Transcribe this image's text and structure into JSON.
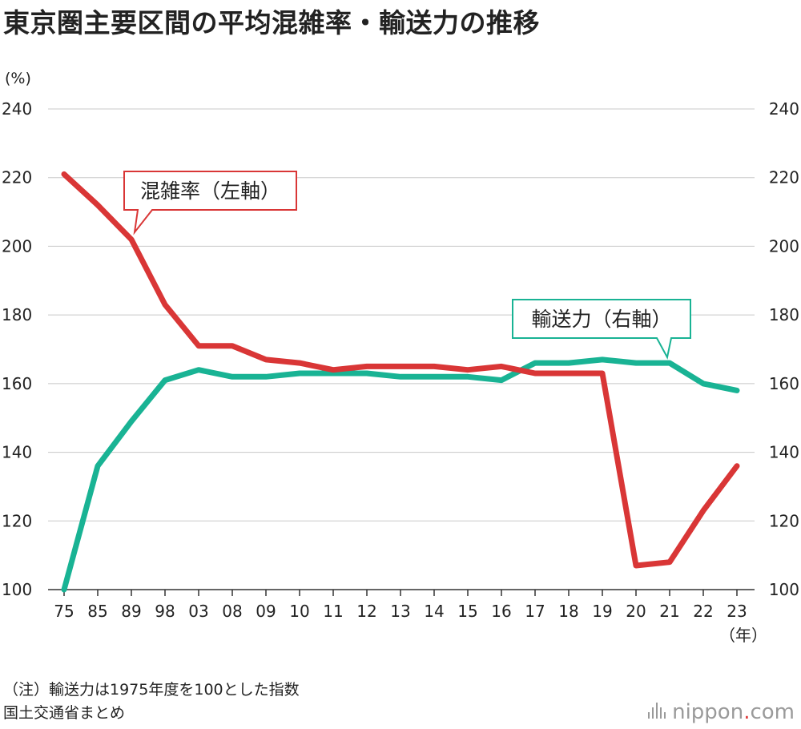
{
  "title": "東京圏主要区間の平均混雑率・輸送力の推移",
  "notes": {
    "line1": "（注）輸送力は1975年度を100とした指数",
    "line2": "国土交通省まとめ"
  },
  "brand": {
    "name": "nippon",
    "dot": ".",
    "tld": "com"
  },
  "chart_data": {
    "type": "line",
    "title": "東京圏主要区間の平均混雑率・輸送力の推移",
    "x_unit": "（年）",
    "y_unit": "(%)",
    "categories": [
      "75",
      "85",
      "89",
      "98",
      "03",
      "08",
      "09",
      "10",
      "11",
      "12",
      "13",
      "14",
      "15",
      "16",
      "17",
      "18",
      "19",
      "20",
      "21",
      "22",
      "23"
    ],
    "ylim": [
      100,
      240
    ],
    "yticks": [
      100,
      120,
      140,
      160,
      180,
      200,
      220,
      240
    ],
    "grid": true,
    "series": [
      {
        "name": "混雑率（左軸）",
        "axis": "left",
        "color": "#d93636",
        "values": [
          221,
          212,
          202,
          183,
          171,
          171,
          167,
          166,
          164,
          165,
          165,
          165,
          164,
          165,
          163,
          163,
          163,
          107,
          108,
          123,
          136
        ]
      },
      {
        "name": "輸送力（右軸）",
        "axis": "right",
        "color": "#19b394",
        "values": [
          100,
          136,
          149,
          161,
          164,
          162,
          162,
          163,
          163,
          163,
          162,
          162,
          162,
          161,
          166,
          166,
          167,
          166,
          166,
          160,
          158
        ]
      }
    ]
  }
}
